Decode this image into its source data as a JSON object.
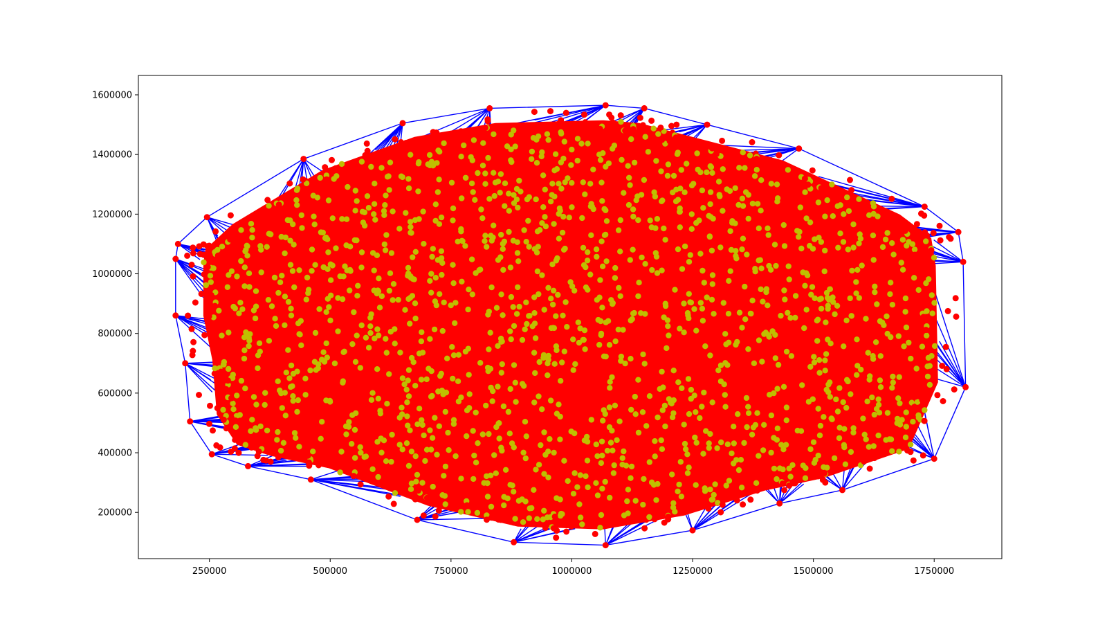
{
  "chart_data": {
    "type": "scatter",
    "title": "",
    "xlabel": "",
    "ylabel": "",
    "xlim": [
      103000,
      1890000
    ],
    "ylim": [
      45000,
      1665000
    ],
    "grid": false,
    "legend": "none",
    "x_ticks": [
      250000,
      500000,
      750000,
      1000000,
      1250000,
      1500000,
      1750000
    ],
    "y_ticks": [
      200000,
      400000,
      600000,
      800000,
      1000000,
      1200000,
      1400000,
      1600000
    ],
    "x_tick_labels": [
      "250000",
      "500000",
      "750000",
      "1000000",
      "1250000",
      "1500000",
      "1750000"
    ],
    "y_tick_labels": [
      "200000",
      "400000",
      "600000",
      "800000",
      "1000000",
      "1200000",
      "1400000",
      "1600000"
    ],
    "hull": [
      [
        1070000,
        1565000
      ],
      [
        830000,
        1555000
      ],
      [
        650000,
        1505000
      ],
      [
        445000,
        1385000
      ],
      [
        245000,
        1190000
      ],
      [
        185000,
        1100000
      ],
      [
        180000,
        1050000
      ],
      [
        180000,
        860000
      ],
      [
        200000,
        700000
      ],
      [
        210000,
        505000
      ],
      [
        255000,
        395000
      ],
      [
        330000,
        355000
      ],
      [
        460000,
        310000
      ],
      [
        680000,
        175000
      ],
      [
        880000,
        100000
      ],
      [
        1070000,
        90000
      ],
      [
        1250000,
        140000
      ],
      [
        1430000,
        230000
      ],
      [
        1560000,
        275000
      ],
      [
        1750000,
        380000
      ],
      [
        1815000,
        620000
      ],
      [
        1810000,
        1040000
      ],
      [
        1800000,
        1140000
      ],
      [
        1730000,
        1225000
      ],
      [
        1470000,
        1420000
      ],
      [
        1280000,
        1500000
      ],
      [
        1150000,
        1555000
      ]
    ],
    "cloud_extent": {
      "x_range": [
        280000,
        1780000
      ],
      "y_range": [
        170000,
        1530000
      ],
      "center": [
        1000000,
        850000
      ]
    },
    "series": [
      {
        "marker": "line",
        "color": "#0000ff"
      },
      {
        "marker": "circle",
        "color": "#ff0000"
      },
      {
        "marker": "circle",
        "color": "#bfbf00"
      }
    ]
  }
}
